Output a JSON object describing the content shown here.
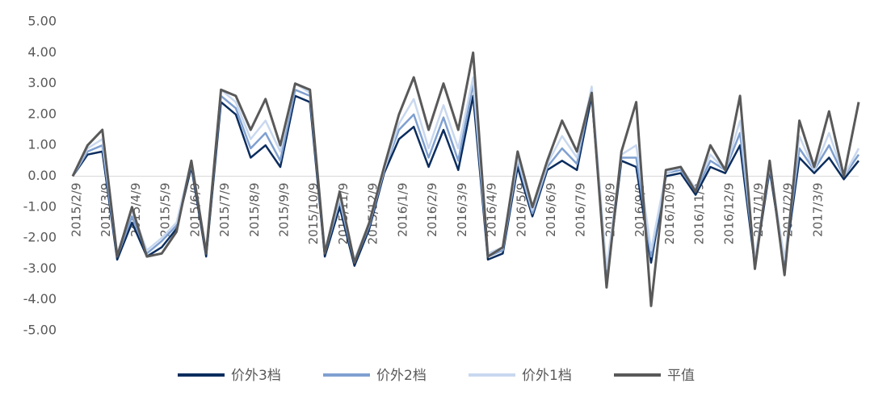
{
  "chart_data": {
    "type": "line",
    "categories": [
      "2015/2/9",
      null,
      "2015/3/9",
      null,
      "2015/4/9",
      null,
      "2015/5/9",
      null,
      "2015/6/9",
      null,
      "2015/7/9",
      null,
      "2015/8/9",
      null,
      "2015/9/9",
      null,
      "2015/10/9",
      null,
      "2015/11/9",
      null,
      "2015/12/9",
      null,
      "2016/1/9",
      null,
      "2016/2/9",
      null,
      "2016/3/9",
      null,
      "2016/4/9",
      null,
      "2016/5/9",
      null,
      "2016/6/9",
      null,
      "2016/7/9",
      null,
      "2016/8/9",
      null,
      "2016/9/9",
      null,
      "2016/10/9",
      null,
      "2016/11/9",
      null,
      "2016/12/9",
      null,
      "2017/1/9",
      null,
      "2017/2/9",
      null,
      "2017/3/9",
      null,
      null,
      null
    ],
    "series": [
      {
        "name": "价外3档",
        "color": "#0b2d5e",
        "values": [
          0.0,
          0.7,
          0.8,
          -2.7,
          -1.5,
          -2.6,
          -2.3,
          -1.7,
          0.3,
          -2.6,
          2.4,
          2.0,
          0.6,
          1.0,
          0.3,
          2.6,
          2.4,
          -2.6,
          -1.0,
          -2.9,
          -1.7,
          0.1,
          1.2,
          1.6,
          0.3,
          1.5,
          0.2,
          2.6,
          -2.7,
          -2.5,
          0.3,
          -1.3,
          0.2,
          0.5,
          0.2,
          2.6,
          -3.4,
          0.5,
          0.3,
          -2.8,
          0.0,
          0.1,
          -0.6,
          0.3,
          0.1,
          1.0,
          -2.9,
          0.2,
          -2.9,
          0.6,
          0.1,
          0.6,
          -0.1,
          0.5
        ]
      },
      {
        "name": "价外2档",
        "color": "#7fa0d0",
        "values": [
          0.0,
          0.8,
          1.0,
          -2.6,
          -1.3,
          -2.5,
          -2.1,
          -1.6,
          0.4,
          -2.5,
          2.6,
          2.2,
          0.9,
          1.4,
          0.5,
          2.8,
          2.6,
          -2.5,
          -0.8,
          -2.8,
          -1.6,
          0.2,
          1.5,
          2.0,
          0.6,
          1.9,
          0.5,
          3.0,
          -2.6,
          -2.4,
          0.5,
          -1.2,
          0.3,
          0.9,
          0.4,
          2.8,
          -3.2,
          0.6,
          0.6,
          -2.6,
          0.1,
          0.2,
          -0.5,
          0.5,
          0.2,
          1.4,
          -2.8,
          0.3,
          -2.8,
          0.9,
          0.2,
          1.0,
          0.0,
          0.7
        ]
      },
      {
        "name": "价外1档",
        "color": "#c8d8ef",
        "values": [
          0.0,
          0.9,
          1.2,
          -2.5,
          -1.1,
          -2.4,
          -2.0,
          -1.5,
          0.5,
          -2.4,
          2.8,
          2.4,
          1.2,
          1.8,
          0.8,
          3.0,
          2.7,
          -2.4,
          -0.7,
          -2.7,
          -1.5,
          0.2,
          1.7,
          2.5,
          0.9,
          2.3,
          0.9,
          3.2,
          -2.5,
          -2.3,
          0.6,
          -1.1,
          0.4,
          1.3,
          0.6,
          2.9,
          -3.0,
          0.7,
          1.0,
          -2.4,
          0.1,
          0.3,
          -0.4,
          0.7,
          0.2,
          1.8,
          -2.7,
          0.4,
          -2.7,
          1.3,
          0.2,
          1.4,
          0.0,
          0.9
        ]
      },
      {
        "name": "平值",
        "color": "#595959",
        "values": [
          0.0,
          1.0,
          1.5,
          -2.6,
          -1.0,
          -2.6,
          -2.5,
          -1.8,
          0.5,
          -2.5,
          2.8,
          2.6,
          1.5,
          2.5,
          1.0,
          3.0,
          2.8,
          -2.5,
          -0.5,
          -2.8,
          -1.5,
          0.3,
          2.0,
          3.2,
          1.5,
          3.0,
          1.5,
          4.0,
          -2.6,
          -2.3,
          0.8,
          -1.0,
          0.5,
          1.8,
          0.8,
          2.7,
          -3.6,
          0.8,
          2.4,
          -4.2,
          0.2,
          0.3,
          -0.5,
          1.0,
          0.2,
          2.6,
          -3.0,
          0.5,
          -3.2,
          1.8,
          0.3,
          2.1,
          0.0,
          2.4
        ]
      }
    ],
    "ylim": [
      -5,
      5
    ],
    "yticks": [
      {
        "value": -5,
        "label": "-5.00"
      },
      {
        "value": -4,
        "label": "-4.00"
      },
      {
        "value": -3,
        "label": "-3.00"
      },
      {
        "value": -2,
        "label": "-2.00"
      },
      {
        "value": -1,
        "label": "-1.00"
      },
      {
        "value": 0,
        "label": "0.00"
      },
      {
        "value": 1,
        "label": "1.00"
      },
      {
        "value": 2,
        "label": "2.00"
      },
      {
        "value": 3,
        "label": "3.00"
      },
      {
        "value": 4,
        "label": "4.00"
      },
      {
        "value": 5,
        "label": "5.00"
      }
    ]
  }
}
